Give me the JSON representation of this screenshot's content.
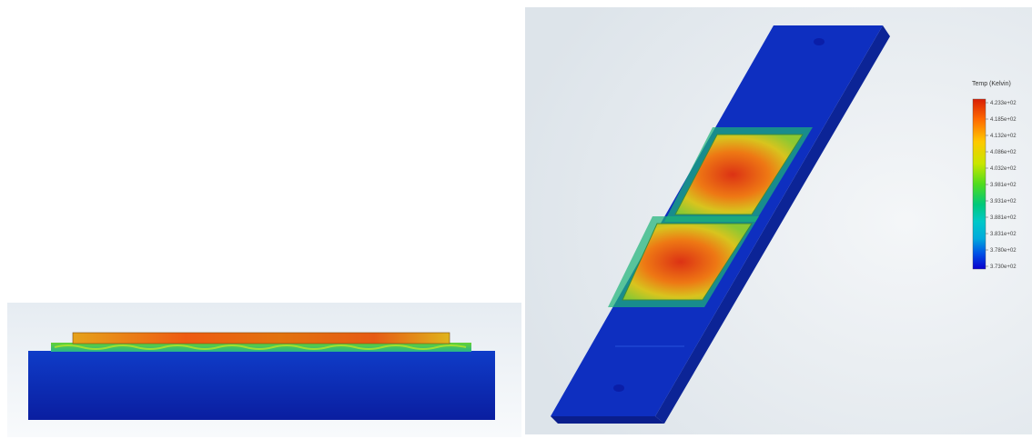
{
  "legend": {
    "title": "Temp (Kelvin)",
    "ticks": [
      "4.233e+02",
      "4.185e+02",
      "4.132e+02",
      "4.086e+02",
      "4.032e+02",
      "3.981e+02",
      "3.931e+02",
      "3.881e+02",
      "3.831e+02",
      "3.780e+02",
      "3.730e+02"
    ],
    "colors": [
      "#d81e05",
      "#ff6a00",
      "#ffc800",
      "#c8e600",
      "#50dc1e",
      "#00c84b",
      "#00c8a0",
      "#00aadc",
      "#0064e6",
      "#0028dc",
      "#0a00cd"
    ]
  },
  "views": {
    "side_view": {
      "name": "side-view"
    },
    "iso_view": {
      "name": "isometric-view"
    }
  }
}
